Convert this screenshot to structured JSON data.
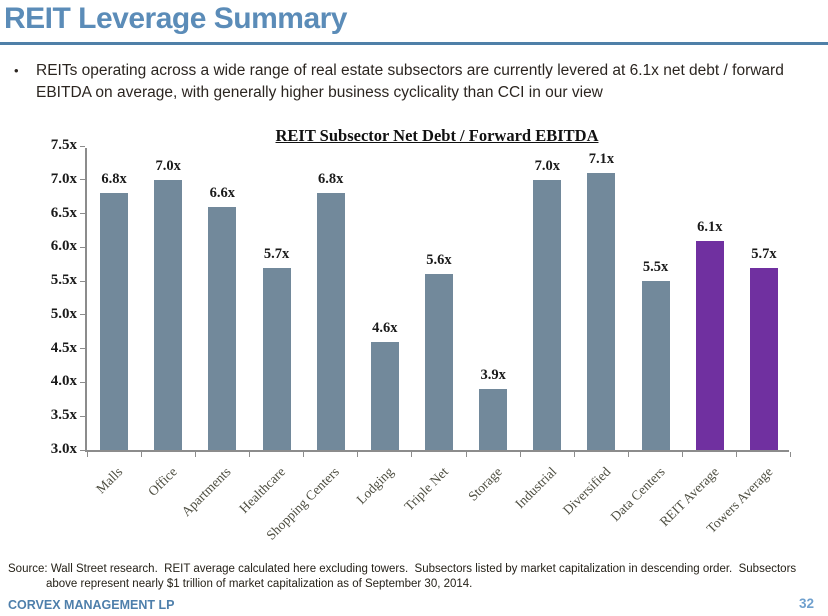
{
  "slide": {
    "title": "REIT Leverage Summary",
    "bullet": "REITs operating across a wide range of real estate subsectors are currently levered at 6.1x net debt / forward EBITDA on average, with generally higher business cyclicality than CCI in our view",
    "bullet_marker": "•",
    "source": "Source: Wall Street research.  REIT average calculated here excluding towers.  Subsectors listed by market capitalization in descending order.  Subsectors above represent nearly $1 trillion of market capitalization as of September 30, 2014.",
    "footer": "CORVEX MANAGEMENT LP",
    "page_number": "32"
  },
  "colors": {
    "title_blue": "#5b8cb8",
    "rule_blue": "#4f80a8",
    "bar_default": "#72899b",
    "bar_highlight": "#7030a0",
    "axis_gray": "#8c8c8c",
    "footer_blue": "#4e7fab",
    "page_number_blue": "#6fa0ce"
  },
  "chart_data": {
    "type": "bar",
    "title": "REIT Subsector Net Debt / Forward EBITDA",
    "categories": [
      "Malls",
      "Office",
      "Apartments",
      "Healthcare",
      "Shopping Centers",
      "Lodging",
      "Triple Net",
      "Storage",
      "Industrial",
      "Diversified",
      "Data Centers",
      "REIT Average",
      "Towers Average"
    ],
    "values": [
      6.8,
      7.0,
      6.6,
      5.7,
      6.8,
      4.6,
      5.6,
      3.9,
      7.0,
      7.1,
      5.5,
      6.1,
      5.7
    ],
    "data_labels": [
      "6.8x",
      "7.0x",
      "6.6x",
      "5.7x",
      "6.8x",
      "4.6x",
      "5.6x",
      "3.9x",
      "7.0x",
      "7.1x",
      "5.5x",
      "6.1x",
      "5.7x"
    ],
    "highlight_indices": [
      11,
      12
    ],
    "xlabel": "",
    "ylabel": "",
    "ylim": [
      3.0,
      7.5
    ],
    "ytick_step": 0.5,
    "ytick_labels": [
      "3.0x",
      "3.5x",
      "4.0x",
      "4.5x",
      "5.0x",
      "5.5x",
      "6.0x",
      "6.5x",
      "7.0x",
      "7.5x"
    ],
    "grid": false,
    "legend_position": "none"
  }
}
